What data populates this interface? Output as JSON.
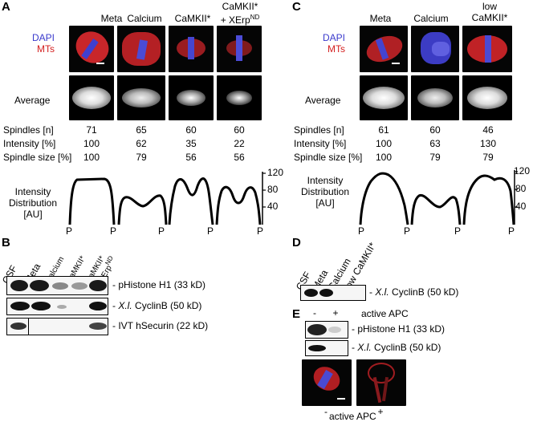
{
  "panels": {
    "A": "A",
    "B": "B",
    "C": "C",
    "D": "D",
    "E": "E"
  },
  "panelA": {
    "columns": [
      {
        "line1": "Meta",
        "line2": ""
      },
      {
        "line1": "Calcium",
        "line2": ""
      },
      {
        "line1": "CaMKII*",
        "line2": ""
      },
      {
        "line1": "CaMKII*",
        "line2": "+ XErp",
        "sup": "ND"
      }
    ],
    "legend_dapi": "DAPI",
    "legend_mts": "MTs",
    "average_label": "Average",
    "rows": [
      {
        "label": "Spindles [n]",
        "values": [
          "71",
          "65",
          "60",
          "60"
        ]
      },
      {
        "label": "Intensity [%]",
        "values": [
          "100",
          "62",
          "35",
          "22"
        ]
      },
      {
        "label": "Spindle size [%]",
        "values": [
          "100",
          "79",
          "56",
          "56"
        ]
      }
    ],
    "distribution_label": [
      "Intensity",
      "Distribution",
      "[AU]"
    ],
    "y_ticks": [
      "120",
      "80",
      "40"
    ],
    "pole_label": "P"
  },
  "panelC": {
    "columns": [
      {
        "line1": "Meta",
        "line2": ""
      },
      {
        "line1": "Calcium",
        "line2": ""
      },
      {
        "line1": "low",
        "line2": "CaMKII*"
      }
    ],
    "legend_dapi": "DAPI",
    "legend_mts": "MTs",
    "average_label": "Average",
    "rows": [
      {
        "label": "Spindles [n]",
        "values": [
          "61",
          "60",
          "46"
        ]
      },
      {
        "label": "Intensity [%]",
        "values": [
          "100",
          "63",
          "130"
        ]
      },
      {
        "label": "Spindle size [%]",
        "values": [
          "100",
          "79",
          "79"
        ]
      }
    ],
    "distribution_label": [
      "Intensity",
      "Distribution",
      "[AU]"
    ],
    "y_ticks": [
      "120",
      "80",
      "40"
    ],
    "pole_label": "P"
  },
  "panelB": {
    "lanes": [
      "CSF",
      "Meta",
      "Calcium",
      "CaMKII*"
    ],
    "lane5_line1": "CaMKII*",
    "lane5_line2": "+ XErp",
    "lane5_sup": "ND",
    "blots": [
      {
        "label": "- pHistone H1 (33 kD)"
      },
      {
        "label_prefix": "- ",
        "label_italic": "X.l.",
        "label_rest": " CyclinB (50 kD)"
      },
      {
        "label": "- IVT hSecurin (22 kD)"
      }
    ]
  },
  "panelD": {
    "lanes": [
      "CSF",
      "Meta",
      "Calcium",
      "low CaMKII*"
    ],
    "label_prefix": "- ",
    "label_italic": "X.l.",
    "label_rest": " CyclinB (50 kD)"
  },
  "panelE": {
    "lane_minus": "-",
    "lane_plus": "+",
    "header": "active APC",
    "blots": [
      {
        "label": "- pHistone H1 (33 kD)"
      },
      {
        "label_prefix": "- ",
        "label_italic": "X.l.",
        "label_rest": " CyclinB (50 kD)"
      }
    ],
    "bottom_minus": "-",
    "bottom_plus": "+",
    "bottom_label": "active APC"
  },
  "colors": {
    "dapi": "#3a3acc",
    "mts": "#d42020",
    "band": "#111111"
  }
}
